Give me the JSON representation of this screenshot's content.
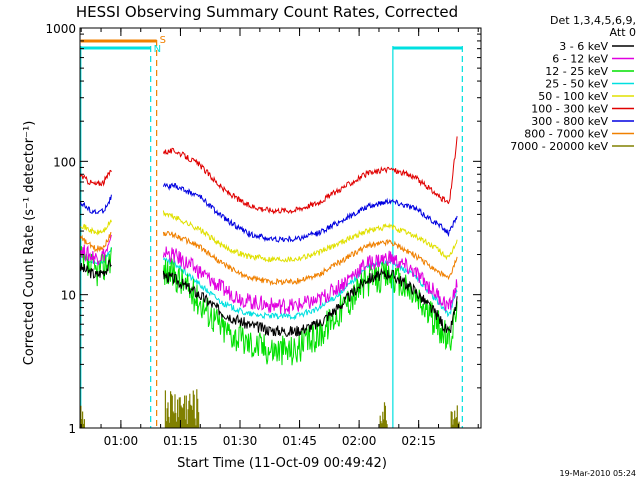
{
  "chart_data": {
    "type": "line",
    "title": "HESSI Observing Summary Count Rates, Corrected",
    "xlabel": "Start Time (11-Oct-09 00:49:42)",
    "ylabel": "Corrected Count Rate (s⁻¹ detector⁻¹)",
    "x_ticks": [
      {
        "x": 10.3,
        "label": "01:00"
      },
      {
        "x": 25.3,
        "label": "01:15"
      },
      {
        "x": 40.3,
        "label": "01:30"
      },
      {
        "x": 55.3,
        "label": "01:45"
      },
      {
        "x": 70.3,
        "label": "02:00"
      },
      {
        "x": 85.3,
        "label": "02:15"
      }
    ],
    "xlim": [
      0,
      101
    ],
    "y_scale": "log",
    "ylim": [
      1,
      1000
    ],
    "y_ticks": [
      {
        "y": 1,
        "label": "1"
      },
      {
        "y": 10,
        "label": "10"
      },
      {
        "y": 100,
        "label": "100"
      },
      {
        "y": 1000,
        "label": "1000"
      }
    ],
    "legend": {
      "header": [
        "Det 1,3,4,5,6,9,",
        "Att 0"
      ],
      "position": "right"
    },
    "date_stamp": "19-Mar-2010 05:24",
    "series": [
      {
        "name": "3 - 6 keV",
        "color": "#000000",
        "x": [
          0,
          2,
          4,
          6,
          7,
          8,
          21,
          24,
          30,
          36,
          42,
          48,
          54,
          60,
          66,
          72,
          78,
          84,
          90,
          93,
          95
        ],
        "y": [
          16,
          15,
          14,
          15,
          16,
          18,
          14,
          13,
          10,
          7.3,
          6,
          5.4,
          5.3,
          6,
          8.5,
          13,
          14.5,
          11,
          7,
          5,
          9
        ]
      },
      {
        "name": "6 - 12 keV",
        "color": "#e000e0",
        "x": [
          0,
          2,
          4,
          6,
          7,
          8,
          21,
          24,
          30,
          36,
          42,
          48,
          54,
          60,
          66,
          72,
          78,
          84,
          90,
          93,
          95
        ],
        "y": [
          22,
          20,
          19,
          20,
          22,
          25,
          21,
          19.5,
          15,
          11,
          9,
          8.3,
          8.2,
          9,
          12,
          17,
          19,
          15,
          10,
          8,
          12
        ]
      },
      {
        "name": "12 - 25 keV",
        "color": "#00e000",
        "x": [
          0,
          2,
          4,
          6,
          7,
          8,
          21,
          24,
          30,
          36,
          42,
          48,
          54,
          60,
          66,
          72,
          78,
          84,
          90,
          93,
          95
        ],
        "y": [
          18,
          16,
          15,
          16,
          18,
          20,
          15,
          14,
          9,
          5.6,
          4.4,
          3.9,
          3.8,
          5,
          8,
          12.5,
          14,
          10,
          6,
          4.4,
          8
        ]
      },
      {
        "name": "25 - 50 keV",
        "color": "#00e0e0",
        "x": [
          0,
          2,
          4,
          6,
          7,
          8,
          21,
          24,
          30,
          36,
          42,
          48,
          54,
          60,
          66,
          72,
          78,
          84,
          90,
          93,
          95
        ],
        "y": [
          20,
          18,
          17,
          18,
          20,
          23,
          18,
          17,
          12,
          8.6,
          7.2,
          6.9,
          6.9,
          7.8,
          10.5,
          16,
          18,
          14,
          9,
          7,
          11
        ]
      },
      {
        "name": "50 - 100 keV",
        "color": "#e0e000",
        "x": [
          0,
          2,
          4,
          6,
          7,
          8,
          21,
          24,
          30,
          36,
          42,
          48,
          54,
          60,
          66,
          72,
          78,
          84,
          90,
          93,
          95
        ],
        "y": [
          34,
          31,
          29,
          30,
          33,
          36,
          41,
          38,
          31,
          23,
          19.5,
          18.5,
          18.5,
          20.5,
          25,
          30,
          32.5,
          28,
          22,
          18.5,
          26
        ]
      },
      {
        "name": "100 - 300 keV",
        "color": "#e00000",
        "x": [
          0,
          2,
          4,
          6,
          7,
          8,
          21,
          24,
          30,
          36,
          42,
          48,
          54,
          60,
          66,
          72,
          78,
          84,
          90,
          93,
          95
        ],
        "y": [
          80,
          71,
          67,
          70,
          78,
          88,
          118,
          120,
          95,
          62,
          47,
          43,
          43,
          49,
          63,
          80,
          88,
          77,
          56,
          48,
          150
        ]
      },
      {
        "name": "300 - 800 keV",
        "color": "#0000e0",
        "x": [
          0,
          2,
          4,
          6,
          7,
          8,
          21,
          24,
          30,
          36,
          42,
          48,
          54,
          60,
          66,
          72,
          78,
          84,
          90,
          93,
          95
        ],
        "y": [
          50,
          44,
          41,
          43,
          48,
          55,
          65,
          65,
          55,
          38,
          29,
          26,
          26,
          29,
          36,
          45,
          51,
          45,
          34,
          29,
          40
        ]
      },
      {
        "name": "800 - 7000 keV",
        "color": "#f08000",
        "x": [
          0,
          2,
          4,
          6,
          7,
          8,
          21,
          24,
          30,
          36,
          42,
          48,
          54,
          60,
          66,
          72,
          78,
          84,
          90,
          93,
          95
        ],
        "y": [
          27,
          24,
          22,
          23,
          26,
          29,
          29,
          28,
          23,
          17,
          13.5,
          12.5,
          12.5,
          14,
          18,
          23,
          25,
          20,
          15,
          13,
          19
        ]
      },
      {
        "name": "7000 - 20000 keV",
        "color": "#808000",
        "values": []
      }
    ],
    "annotations": [
      {
        "label": "S",
        "color": "#f08000"
      },
      {
        "label": "N",
        "color": "#00e0e0"
      }
    ]
  }
}
